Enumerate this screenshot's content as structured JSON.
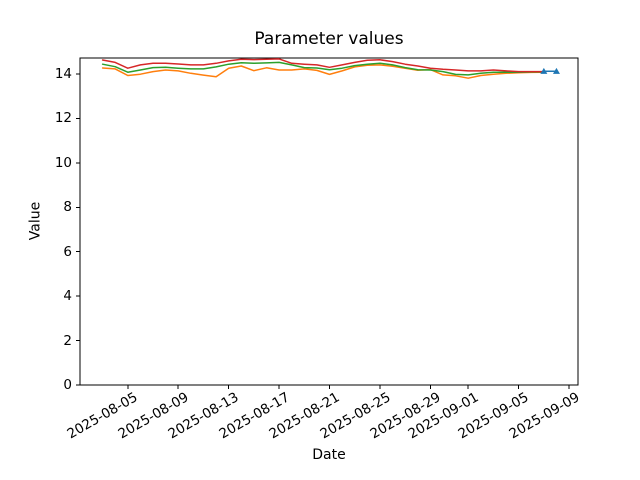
{
  "chart_data": {
    "type": "line",
    "title": "Parameter values",
    "xlabel": "Date",
    "ylabel": "Value",
    "grid": false,
    "legend": "none",
    "ylim": [
      0,
      14.72
    ],
    "xlim": [
      "2025-08-01T05:00:00Z",
      "2025-09-09T17:00:00Z"
    ],
    "y_ticks": [
      0,
      2,
      4,
      6,
      8,
      10,
      12,
      14
    ],
    "x_ticks": [
      "2025-08-05",
      "2025-08-09",
      "2025-08-13",
      "2025-08-17",
      "2025-08-21",
      "2025-08-25",
      "2025-08-29",
      "2025-09-01",
      "2025-09-05",
      "2025-09-09"
    ],
    "x": [
      "2025-08-03",
      "2025-08-04",
      "2025-08-05",
      "2025-08-06",
      "2025-08-07",
      "2025-08-08",
      "2025-08-09",
      "2025-08-10",
      "2025-08-11",
      "2025-08-12",
      "2025-08-13",
      "2025-08-14",
      "2025-08-15",
      "2025-08-16",
      "2025-08-17",
      "2025-08-18",
      "2025-08-19",
      "2025-08-20",
      "2025-08-21",
      "2025-08-22",
      "2025-08-23",
      "2025-08-24",
      "2025-08-25",
      "2025-08-26",
      "2025-08-27",
      "2025-08-28",
      "2025-08-29",
      "2025-08-30",
      "2025-08-31",
      "2025-09-01",
      "2025-09-02",
      "2025-09-03",
      "2025-09-04",
      "2025-09-05",
      "2025-09-06",
      "2025-09-07"
    ],
    "series": [
      {
        "name": "orange",
        "color": "#ff7f0e",
        "marker": "none",
        "values": [
          14.27,
          14.23,
          13.93,
          13.99,
          14.11,
          14.18,
          14.14,
          14.03,
          13.95,
          13.88,
          14.26,
          14.36,
          14.15,
          14.28,
          14.18,
          14.18,
          14.23,
          14.16,
          13.98,
          14.14,
          14.32,
          14.39,
          14.41,
          14.35,
          14.26,
          14.17,
          14.2,
          13.96,
          13.92,
          13.81,
          13.93,
          13.99,
          14.03,
          14.06,
          14.07,
          14.08
        ]
      },
      {
        "name": "green",
        "color": "#2ca02c",
        "marker": "none",
        "values": [
          14.44,
          14.33,
          14.08,
          14.18,
          14.29,
          14.3,
          14.26,
          14.23,
          14.23,
          14.32,
          14.44,
          14.51,
          14.48,
          14.5,
          14.52,
          14.41,
          14.29,
          14.27,
          14.19,
          14.26,
          14.38,
          14.44,
          14.48,
          14.41,
          14.29,
          14.19,
          14.18,
          14.11,
          13.98,
          13.96,
          14.03,
          14.08,
          14.08,
          14.08,
          14.09,
          14.09
        ]
      },
      {
        "name": "red",
        "color": "#d62728",
        "marker": "none",
        "values": [
          14.63,
          14.52,
          14.26,
          14.41,
          14.48,
          14.48,
          14.45,
          14.41,
          14.41,
          14.48,
          14.59,
          14.66,
          14.65,
          14.66,
          14.68,
          14.48,
          14.44,
          14.41,
          14.3,
          14.41,
          14.52,
          14.62,
          14.64,
          14.56,
          14.44,
          14.36,
          14.26,
          14.21,
          14.18,
          14.14,
          14.14,
          14.18,
          14.14,
          14.11,
          14.11,
          14.11
        ]
      },
      {
        "name": "blue",
        "color": "#1f77b4",
        "marker": "triangle-up",
        "x": [
          "2025-09-07",
          "2025-09-08"
        ],
        "values": [
          14.12,
          14.12
        ]
      }
    ],
    "axis_color": "#000000",
    "background_color": "#ffffff"
  }
}
